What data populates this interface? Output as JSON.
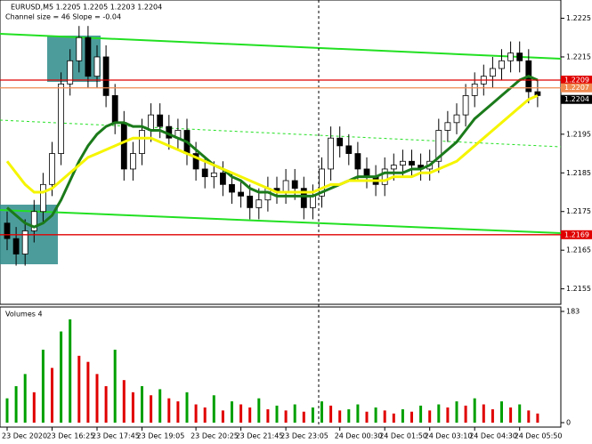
{
  "chart_data": {
    "type": "candlestick",
    "title": "EURUSD,M5  1.2205 1.2205 1.2203 1.2204",
    "subtitle": "Channel size = 46 Slope = -0.04",
    "volume_title": "Volumes 4",
    "ylim": [
      1.2151,
      1.22265
    ],
    "yticks": [
      1.2155,
      1.2165,
      1.2175,
      1.2185,
      1.2195,
      1.2215,
      1.2225
    ],
    "price_tags": [
      {
        "value": 1.2209,
        "color": "#e00000",
        "line": true
      },
      {
        "value": 1.2207,
        "color": "#f08a50",
        "line": true
      },
      {
        "value": 1.2204,
        "color": "#000000",
        "line": false
      },
      {
        "value": 1.2169,
        "color": "#e00000",
        "line": true
      }
    ],
    "categories": [
      "23 Dec 2020",
      null,
      null,
      null,
      null,
      "23 Dec 16:25",
      null,
      null,
      null,
      null,
      "23 Dec 17:45",
      null,
      null,
      null,
      null,
      "23 Dec 19:05",
      null,
      null,
      null,
      null,
      null,
      "23 Dec 20:25",
      null,
      null,
      null,
      null,
      "23 Dec 21:45",
      null,
      null,
      null,
      null,
      "23 Dec 23:05",
      null,
      null,
      null,
      null,
      null,
      "24 Dec 00:30",
      null,
      null,
      null,
      null,
      "24 Dec 01:50",
      null,
      null,
      null,
      null,
      "24 Dec 03:10",
      null,
      null,
      null,
      null,
      "24 Dec 04:30",
      null,
      null,
      null,
      null,
      "24 Dec 05:50",
      null,
      null
    ],
    "open": [
      1.2172,
      1.2168,
      1.2164,
      1.217,
      1.2175,
      1.2182,
      1.219,
      1.2208,
      1.2214,
      1.222,
      1.221,
      1.2215,
      1.2205,
      1.2198,
      1.2186,
      1.219,
      1.2196,
      1.22,
      1.2197,
      1.2194,
      1.2196,
      1.219,
      1.2186,
      1.2184,
      1.2185,
      1.2182,
      1.218,
      1.2179,
      1.2176,
      1.2178,
      1.2181,
      1.218,
      1.2183,
      1.2181,
      1.2176,
      1.2179,
      1.2186,
      1.2194,
      1.2192,
      1.219,
      1.2186,
      1.2184,
      1.2182,
      1.2186,
      1.2187,
      1.2188,
      1.2187,
      1.2186,
      1.2188,
      1.2196,
      1.2198,
      1.22,
      1.2205,
      1.2208,
      1.221,
      1.2212,
      1.2214,
      1.2216,
      1.2214,
      1.2206
    ],
    "high": [
      1.2175,
      1.2171,
      1.2173,
      1.2178,
      1.2185,
      1.2193,
      1.2211,
      1.2217,
      1.2223,
      1.2223,
      1.2218,
      1.2218,
      1.2208,
      1.2201,
      1.2193,
      1.2199,
      1.2203,
      1.2203,
      1.22,
      1.2199,
      1.2199,
      1.2193,
      1.2189,
      1.2188,
      1.2188,
      1.2185,
      1.2183,
      1.2182,
      1.2181,
      1.2184,
      1.2184,
      1.2186,
      1.2186,
      1.2184,
      1.2182,
      1.2189,
      1.2197,
      1.2197,
      1.2195,
      1.2193,
      1.2189,
      1.2187,
      1.2189,
      1.219,
      1.2191,
      1.2191,
      1.219,
      1.2191,
      1.2199,
      1.2201,
      1.2203,
      1.2208,
      1.2211,
      1.2213,
      1.2215,
      1.2217,
      1.2219,
      1.2219,
      1.2217,
      1.2209
    ],
    "low": [
      1.2165,
      1.2161,
      1.2161,
      1.2167,
      1.2172,
      1.2179,
      1.2187,
      1.2205,
      1.2211,
      1.2207,
      1.2207,
      1.2202,
      1.2195,
      1.2183,
      1.2183,
      1.2187,
      1.2193,
      1.2194,
      1.2191,
      1.2191,
      1.2187,
      1.2183,
      1.2181,
      1.2181,
      1.2179,
      1.2177,
      1.2176,
      1.2173,
      1.2173,
      1.2175,
      1.2177,
      1.2177,
      1.2178,
      1.2173,
      1.2173,
      1.2176,
      1.2183,
      1.2189,
      1.2187,
      1.2183,
      1.2181,
      1.2179,
      1.2179,
      1.2183,
      1.2184,
      1.2184,
      1.2183,
      1.2183,
      1.2185,
      1.2193,
      1.2195,
      1.2197,
      1.2202,
      1.2205,
      1.2207,
      1.2209,
      1.2211,
      1.2211,
      1.2203,
      1.2202
    ],
    "close": [
      1.2168,
      1.2164,
      1.217,
      1.2175,
      1.2182,
      1.219,
      1.2208,
      1.2214,
      1.222,
      1.221,
      1.2215,
      1.2205,
      1.2198,
      1.2186,
      1.219,
      1.2196,
      1.22,
      1.2197,
      1.2194,
      1.2196,
      1.219,
      1.2186,
      1.2184,
      1.2185,
      1.2182,
      1.218,
      1.2179,
      1.2176,
      1.2178,
      1.2181,
      1.218,
      1.2183,
      1.2181,
      1.2176,
      1.2179,
      1.2186,
      1.2194,
      1.2192,
      1.219,
      1.2186,
      1.2184,
      1.2182,
      1.2186,
      1.2187,
      1.2188,
      1.2187,
      1.2186,
      1.2188,
      1.2196,
      1.2198,
      1.22,
      1.2205,
      1.2208,
      1.221,
      1.2212,
      1.2214,
      1.2216,
      1.2214,
      1.2206,
      1.2205
    ],
    "ma_series": [
      {
        "color": "#1a7a1a",
        "values": [
          1.2176,
          1.2174,
          1.2172,
          1.2171,
          1.2172,
          1.2174,
          1.2178,
          1.2183,
          1.2188,
          1.2192,
          1.2195,
          1.2197,
          1.2198,
          1.2198,
          1.2197,
          1.2197,
          1.2196,
          1.2196,
          1.2195,
          1.2194,
          1.2193,
          1.2191,
          1.2189,
          1.2187,
          1.2186,
          1.2184,
          1.2183,
          1.2181,
          1.218,
          1.218,
          1.2179,
          1.2179,
          1.2179,
          1.2179,
          1.2179,
          1.218,
          1.2181,
          1.2182,
          1.2183,
          1.2184,
          1.2184,
          1.2184,
          1.2185,
          1.2185,
          1.2185,
          1.2186,
          1.2186,
          1.2187,
          1.2189,
          1.2191,
          1.2193,
          1.2196,
          1.2199,
          1.2201,
          1.2203,
          1.2205,
          1.2207,
          1.2209,
          1.221,
          1.2209
        ]
      },
      {
        "color": "#f5f500",
        "values": [
          1.2188,
          1.2185,
          1.2182,
          1.218,
          1.218,
          1.2181,
          1.2183,
          1.2185,
          1.2187,
          1.2189,
          1.219,
          1.2191,
          1.2192,
          1.2193,
          1.2194,
          1.2194,
          1.2194,
          1.2193,
          1.2192,
          1.2191,
          1.219,
          1.2189,
          1.2188,
          1.2187,
          1.2186,
          1.2185,
          1.2184,
          1.2183,
          1.2182,
          1.2181,
          1.218,
          1.218,
          1.218,
          1.218,
          1.218,
          1.2181,
          1.2182,
          1.2182,
          1.2183,
          1.2183,
          1.2183,
          1.2183,
          1.2183,
          1.2184,
          1.2184,
          1.2184,
          1.2185,
          1.2185,
          1.2186,
          1.2187,
          1.2188,
          1.219,
          1.2192,
          1.2194,
          1.2196,
          1.2198,
          1.22,
          1.2202,
          1.2204,
          1.2205
        ]
      }
    ],
    "volumes": [
      40,
      60,
      80,
      50,
      120,
      90,
      150,
      170,
      110,
      100,
      80,
      60,
      120,
      70,
      50,
      60,
      45,
      55,
      40,
      35,
      50,
      30,
      25,
      45,
      20,
      35,
      30,
      25,
      40,
      22,
      28,
      20,
      30,
      18,
      25,
      35,
      28,
      20,
      22,
      30,
      18,
      25,
      20,
      15,
      22,
      18,
      28,
      20,
      30,
      25,
      35,
      28,
      40,
      30,
      22,
      35,
      25,
      30,
      20,
      15
    ],
    "volume_ylim": [
      0,
      183
    ],
    "volume_yticks": [
      0,
      183
    ],
    "up_volume_color": "#00a000",
    "down_volume_color": "#e00000"
  }
}
